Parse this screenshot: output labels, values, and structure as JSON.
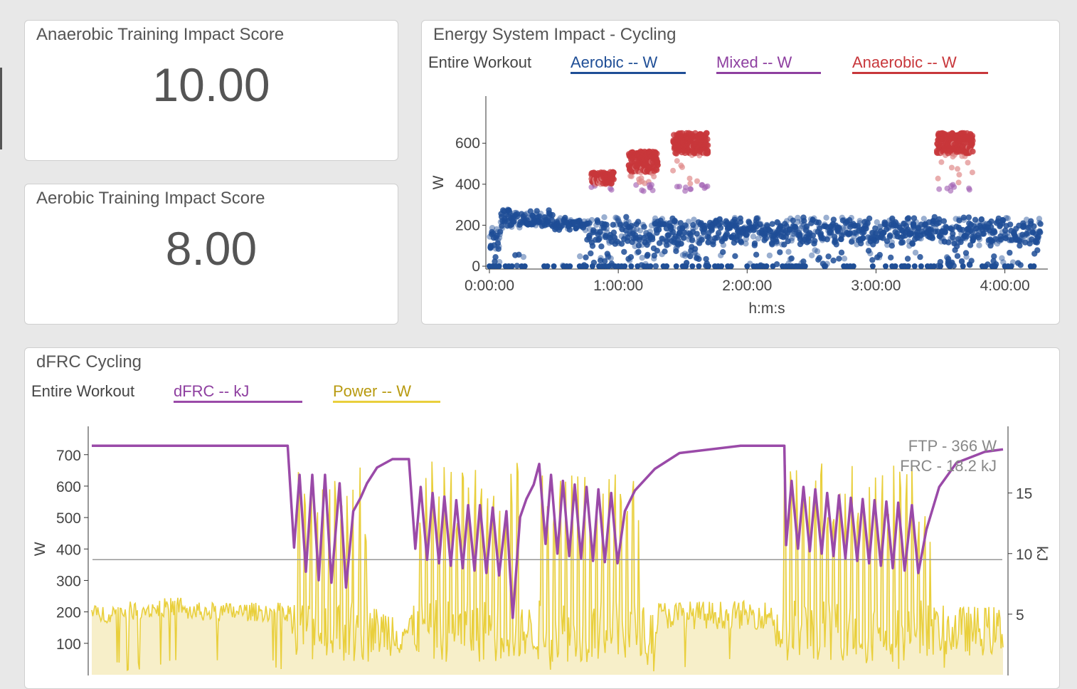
{
  "anaerobic_card": {
    "title": "Anaerobic Training Impact Score",
    "value": "10.00"
  },
  "aerobic_card": {
    "title": "Aerobic Training Impact Score",
    "value": "8.00"
  },
  "energy_card": {
    "title": "Energy System Impact - Cycling",
    "range_label": "Entire Workout",
    "legend": [
      {
        "label": "Aerobic  -- W",
        "color": "#1f4e96"
      },
      {
        "label": "Mixed  -- W",
        "color": "#8e3fa0"
      },
      {
        "label": "Anaerobic  -- W",
        "color": "#c8373b"
      }
    ]
  },
  "dfrc_card": {
    "title": "dFRC Cycling",
    "range_label": "Entire Workout",
    "legend": [
      {
        "label": "dFRC  -- kJ",
        "color": "#9a4aa8"
      },
      {
        "label": "Power  -- W",
        "color": "#e9cf3c"
      }
    ],
    "ftp_label": "FTP - 366 W",
    "frc_label": "FRC - 18.2 kJ"
  },
  "chart_data": [
    {
      "type": "scatter",
      "title": "Energy System Impact - Cycling",
      "xlabel": "h:m:s",
      "ylabel": "W",
      "x_ticks": [
        "0:00:00",
        "1:00:00",
        "2:00:00",
        "3:00:00",
        "4:00:00"
      ],
      "y_ticks": [
        0,
        200,
        400,
        600
      ],
      "xlim_seconds": [
        0,
        15600
      ],
      "ylim": [
        0,
        830
      ],
      "series": [
        {
          "name": "Aerobic",
          "color": "#1f4e96",
          "range": [
            0,
            366
          ]
        },
        {
          "name": "Mixed",
          "color": "#a566b5",
          "range": [
            366,
            400
          ]
        },
        {
          "name": "Anaerobic",
          "color": "#c8373b",
          "range": [
            400,
            720
          ]
        }
      ],
      "anaerobic_blocks_seconds": [
        [
          2850,
          3470
        ],
        [
          3890,
          4690
        ],
        [
          5130,
          6100
        ],
        [
          12500,
          13500
        ]
      ]
    },
    {
      "type": "line",
      "title": "dFRC Cycling",
      "ylabel": "W",
      "ylabel_right": "kJ",
      "y_ticks": [
        100,
        200,
        300,
        400,
        500,
        600,
        700
      ],
      "y_right_ticks": [
        5,
        10,
        15
      ],
      "ylim": [
        0,
        790
      ],
      "ylim_right": [
        0,
        20.5
      ],
      "ftp": 366,
      "series": [
        {
          "name": "dFRC",
          "unit": "kJ",
          "color": "#9a4aa8",
          "x": [
            0,
            0.215,
            0.222,
            0.228,
            0.235,
            0.242,
            0.249,
            0.256,
            0.263,
            0.272,
            0.279,
            0.287,
            0.295,
            0.302,
            0.313,
            0.33,
            0.348,
            0.355,
            0.361,
            0.368,
            0.374,
            0.381,
            0.387,
            0.394,
            0.4,
            0.407,
            0.413,
            0.42,
            0.426,
            0.433,
            0.44,
            0.447,
            0.455,
            0.462,
            0.47,
            0.477,
            0.485,
            0.491,
            0.498,
            0.504,
            0.511,
            0.517,
            0.524,
            0.53,
            0.537,
            0.543,
            0.55,
            0.556,
            0.563,
            0.57,
            0.577,
            0.585,
            0.596,
            0.618,
            0.645,
            0.712,
            0.76,
            0.762,
            0.768,
            0.775,
            0.781,
            0.788,
            0.794,
            0.801,
            0.807,
            0.814,
            0.82,
            0.827,
            0.833,
            0.84,
            0.846,
            0.853,
            0.859,
            0.866,
            0.872,
            0.879,
            0.885,
            0.892,
            0.9,
            0.907,
            0.916,
            0.93,
            0.949,
            0.98,
            1.0
          ],
          "y": [
            18.9,
            18.9,
            10.5,
            16.5,
            8.5,
            16.5,
            7.8,
            16.5,
            7.6,
            15.8,
            7.2,
            13.5,
            14.6,
            15.8,
            17.1,
            17.8,
            17.8,
            10.4,
            15.5,
            9.5,
            15.0,
            9.2,
            14.7,
            9.0,
            14.4,
            8.8,
            14.0,
            8.6,
            14.0,
            8.4,
            13.8,
            8.2,
            13.5,
            4.7,
            13.0,
            14.5,
            15.7,
            17.4,
            10.8,
            16.5,
            10.0,
            16.0,
            9.8,
            15.7,
            9.6,
            15.5,
            9.4,
            15.3,
            9.3,
            15.0,
            9.2,
            13.5,
            15.2,
            17.0,
            18.3,
            18.9,
            18.9,
            10.7,
            16.0,
            10.4,
            15.5,
            10.2,
            15.3,
            10.0,
            15.0,
            9.8,
            14.8,
            9.6,
            14.6,
            9.4,
            14.5,
            9.2,
            14.4,
            9.0,
            14.3,
            8.8,
            14.2,
            8.6,
            14.0,
            8.4,
            12.0,
            15.5,
            17.5,
            18.4,
            18.6
          ]
        },
        {
          "name": "Power",
          "unit": "W",
          "color": "#e9cf3c"
        }
      ]
    }
  ]
}
